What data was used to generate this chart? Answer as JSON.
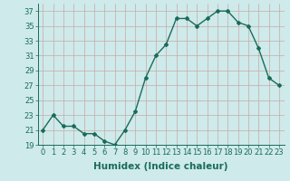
{
  "x": [
    0,
    1,
    2,
    3,
    4,
    5,
    6,
    7,
    8,
    9,
    10,
    11,
    12,
    13,
    14,
    15,
    16,
    17,
    18,
    19,
    20,
    21,
    22,
    23
  ],
  "y": [
    21,
    23,
    21.5,
    21.5,
    20.5,
    20.5,
    19.5,
    19,
    21,
    23.5,
    28,
    31,
    32.5,
    36,
    36,
    35,
    36,
    37,
    37,
    35.5,
    35,
    32,
    28,
    27
  ],
  "line_color": "#1a6b5a",
  "marker": "D",
  "marker_size": 2,
  "bg_color": "#ceeaea",
  "grid_color": "#c8a8a8",
  "xlabel": "Humidex (Indice chaleur)",
  "ylim": [
    19,
    38
  ],
  "xlim": [
    -0.5,
    23.5
  ],
  "yticks": [
    19,
    21,
    23,
    25,
    27,
    29,
    31,
    33,
    35,
    37
  ],
  "xticks": [
    0,
    1,
    2,
    3,
    4,
    5,
    6,
    7,
    8,
    9,
    10,
    11,
    12,
    13,
    14,
    15,
    16,
    17,
    18,
    19,
    20,
    21,
    22,
    23
  ],
  "xlabel_fontsize": 7.5,
  "tick_fontsize": 6,
  "line_width": 1.0
}
